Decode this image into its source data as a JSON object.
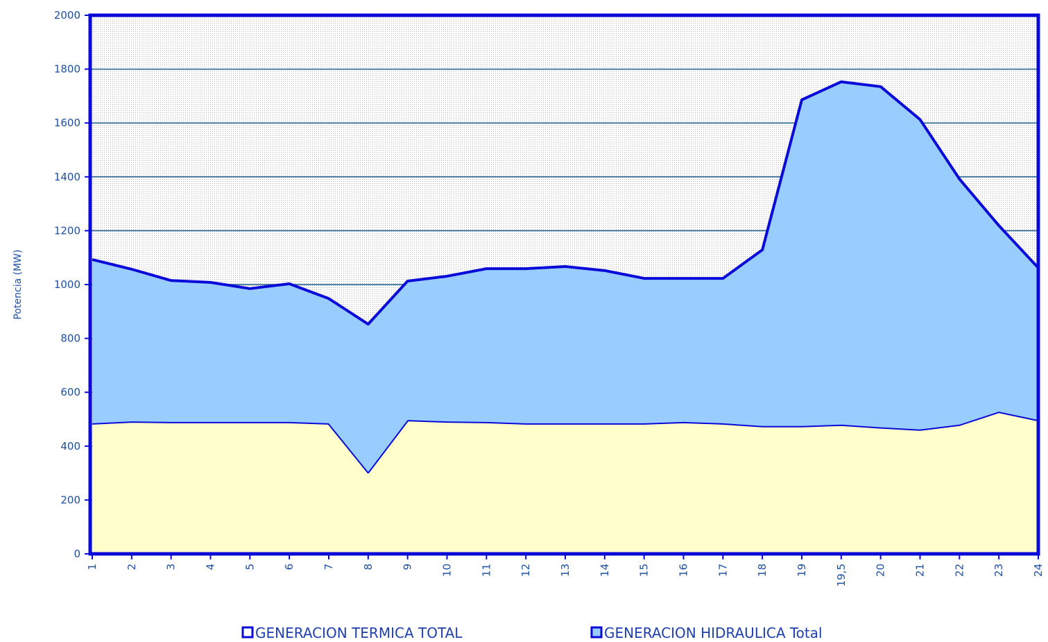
{
  "chart_data": {
    "type": "stacked_area",
    "ylabel": "Potencia (MW)",
    "categories": [
      "1",
      "2",
      "3",
      "4",
      "5",
      "6",
      "7",
      "8",
      "9",
      "10",
      "11",
      "12",
      "13",
      "14",
      "15",
      "16",
      "17",
      "18",
      "19",
      "19,5",
      "20",
      "21",
      "22",
      "23",
      "24"
    ],
    "series": [
      {
        "name": "GENERACION TERMICA TOTAL",
        "color": "#ffffcc",
        "values": [
          485,
          492,
          490,
          490,
          490,
          490,
          485,
          304,
          497,
          492,
          490,
          485,
          485,
          485,
          485,
          490,
          485,
          475,
          475,
          480,
          470,
          462,
          480,
          528,
          497
        ]
      },
      {
        "name": "GENERACION HIDRAULICA Total",
        "color": "#99ccff",
        "values": [
          608,
          565,
          525,
          518,
          495,
          513,
          463,
          549,
          516,
          539,
          569,
          574,
          582,
          567,
          538,
          533,
          538,
          654,
          1211,
          1273,
          1265,
          1151,
          912,
          691,
          565
        ]
      }
    ],
    "line_color": "#0a0ad8",
    "ylim": [
      0,
      2000
    ],
    "yticks": [
      0,
      200,
      400,
      600,
      800,
      1000,
      1200,
      1400,
      1600,
      1800,
      2000
    ],
    "grid": true
  }
}
